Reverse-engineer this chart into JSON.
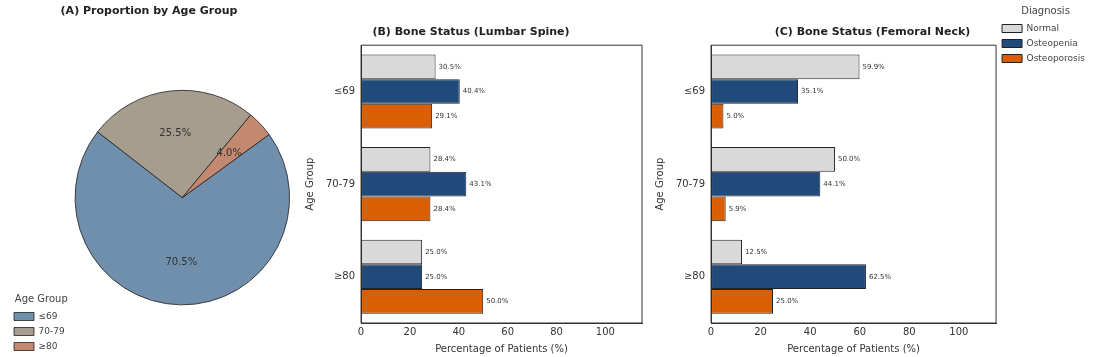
{
  "chart_data": [
    {
      "type": "pie",
      "title": "(A) Proportion by Age Group",
      "categories": [
        "≤69",
        "70-79",
        "≥80"
      ],
      "values": [
        70.5,
        25.5,
        4.0
      ],
      "colors": [
        "#6f8fad",
        "#a69d8e",
        "#c38870"
      ],
      "value_labels": [
        "70.5%",
        "25.5%",
        "4.0%"
      ],
      "legend": "bottom left",
      "legend_title": "Age Group"
    },
    {
      "type": "bar",
      "orientation": "horizontal",
      "title": "(B) Bone Status (Lumbar Spine)",
      "xlabel": "Percentage of Patients (%)",
      "ylabel": "Age Group",
      "categories": [
        "≤69",
        "70-79",
        "≥80"
      ],
      "series": [
        {
          "color": "#d9d9d9",
          "values": [
            30.5,
            28.4,
            25.0
          ],
          "value_labels": [
            "30.5%",
            "28.4%",
            "25.0%"
          ]
        },
        {
          "color": "#1f4a7a",
          "values": [
            40.4,
            43.1,
            25.0
          ],
          "value_labels": [
            "40.4%",
            "43.1%",
            "25.0%"
          ]
        },
        {
          "color": "#d95f02",
          "values": [
            29.1,
            28.4,
            50.0
          ],
          "value_labels": [
            "29.1%",
            "28.4%",
            "50.0%"
          ]
        }
      ],
      "xlim": [
        0,
        115
      ],
      "xticks": [
        0,
        20,
        40,
        60,
        80,
        100
      ],
      "grid": false,
      "legend": false
    },
    {
      "type": "bar",
      "orientation": "horizontal",
      "title": "(C) Bone Status (Femoral Neck)",
      "xlabel": "Percentage of Patients (%)",
      "ylabel": "Age Group",
      "categories": [
        "≤69",
        "70-79",
        "≥80"
      ],
      "series": [
        {
          "name": "Normal",
          "color": "#d9d9d9",
          "values": [
            59.9,
            50.0,
            12.5
          ],
          "value_labels": [
            "59.9%",
            "50.0%",
            "12.5%"
          ]
        },
        {
          "name": "Osteopenia",
          "color": "#1f4a7a",
          "values": [
            35.1,
            44.1,
            62.5
          ],
          "value_labels": [
            "35.1%",
            "44.1%",
            "62.5%"
          ]
        },
        {
          "name": "Osteoporosis",
          "color": "#d95f02",
          "values": [
            5.0,
            5.9,
            25.0
          ],
          "value_labels": [
            "5.0%",
            "5.9%",
            "25.0%"
          ]
        }
      ],
      "xlim": [
        0,
        115
      ],
      "xticks": [
        0,
        20,
        40,
        60,
        80,
        100
      ],
      "grid": false,
      "legend": "top right",
      "legend_title": "Diagnosis"
    }
  ]
}
